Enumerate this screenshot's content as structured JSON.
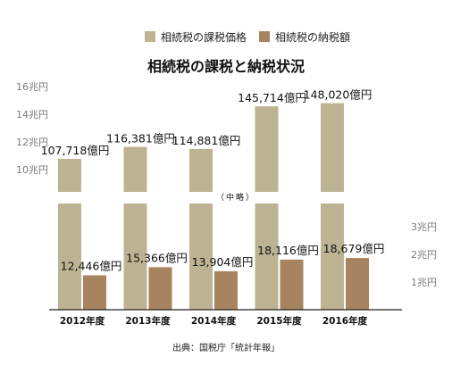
{
  "chart_data": {
    "type": "bar",
    "title": "相続税の課税と納税状況",
    "categories": [
      "2012年度",
      "2013年度",
      "2014年度",
      "2015年度",
      "2016年度"
    ],
    "series": [
      {
        "name": "相続税の課税価格",
        "values": [
          107718,
          116381,
          114881,
          145714,
          148020
        ],
        "labels": [
          "107,718億円",
          "116,381億円",
          "114,881億円",
          "145,714億円",
          "148,020億円"
        ],
        "color": "#bdb393"
      },
      {
        "name": "相続税の納税額",
        "values": [
          12446,
          15366,
          13904,
          18116,
          18679
        ],
        "labels": [
          "12,446億円",
          "15,366億円",
          "13,904億円",
          "18,116億円",
          "18,679億円"
        ],
        "color": "#a7845f"
      }
    ],
    "y_axis_upper": {
      "ticks": [
        "10兆円",
        "12兆円",
        "14兆円",
        "16兆円"
      ],
      "values": [
        100000,
        120000,
        140000,
        160000
      ]
    },
    "y_axis_lower": {
      "ticks": [
        "1兆円",
        "2兆円",
        "3兆円"
      ],
      "values": [
        10000,
        20000,
        30000
      ]
    },
    "break_label": "（中略）",
    "source": "出典：国税庁「統計年報」",
    "legend_position": "top-center",
    "grid": false
  }
}
